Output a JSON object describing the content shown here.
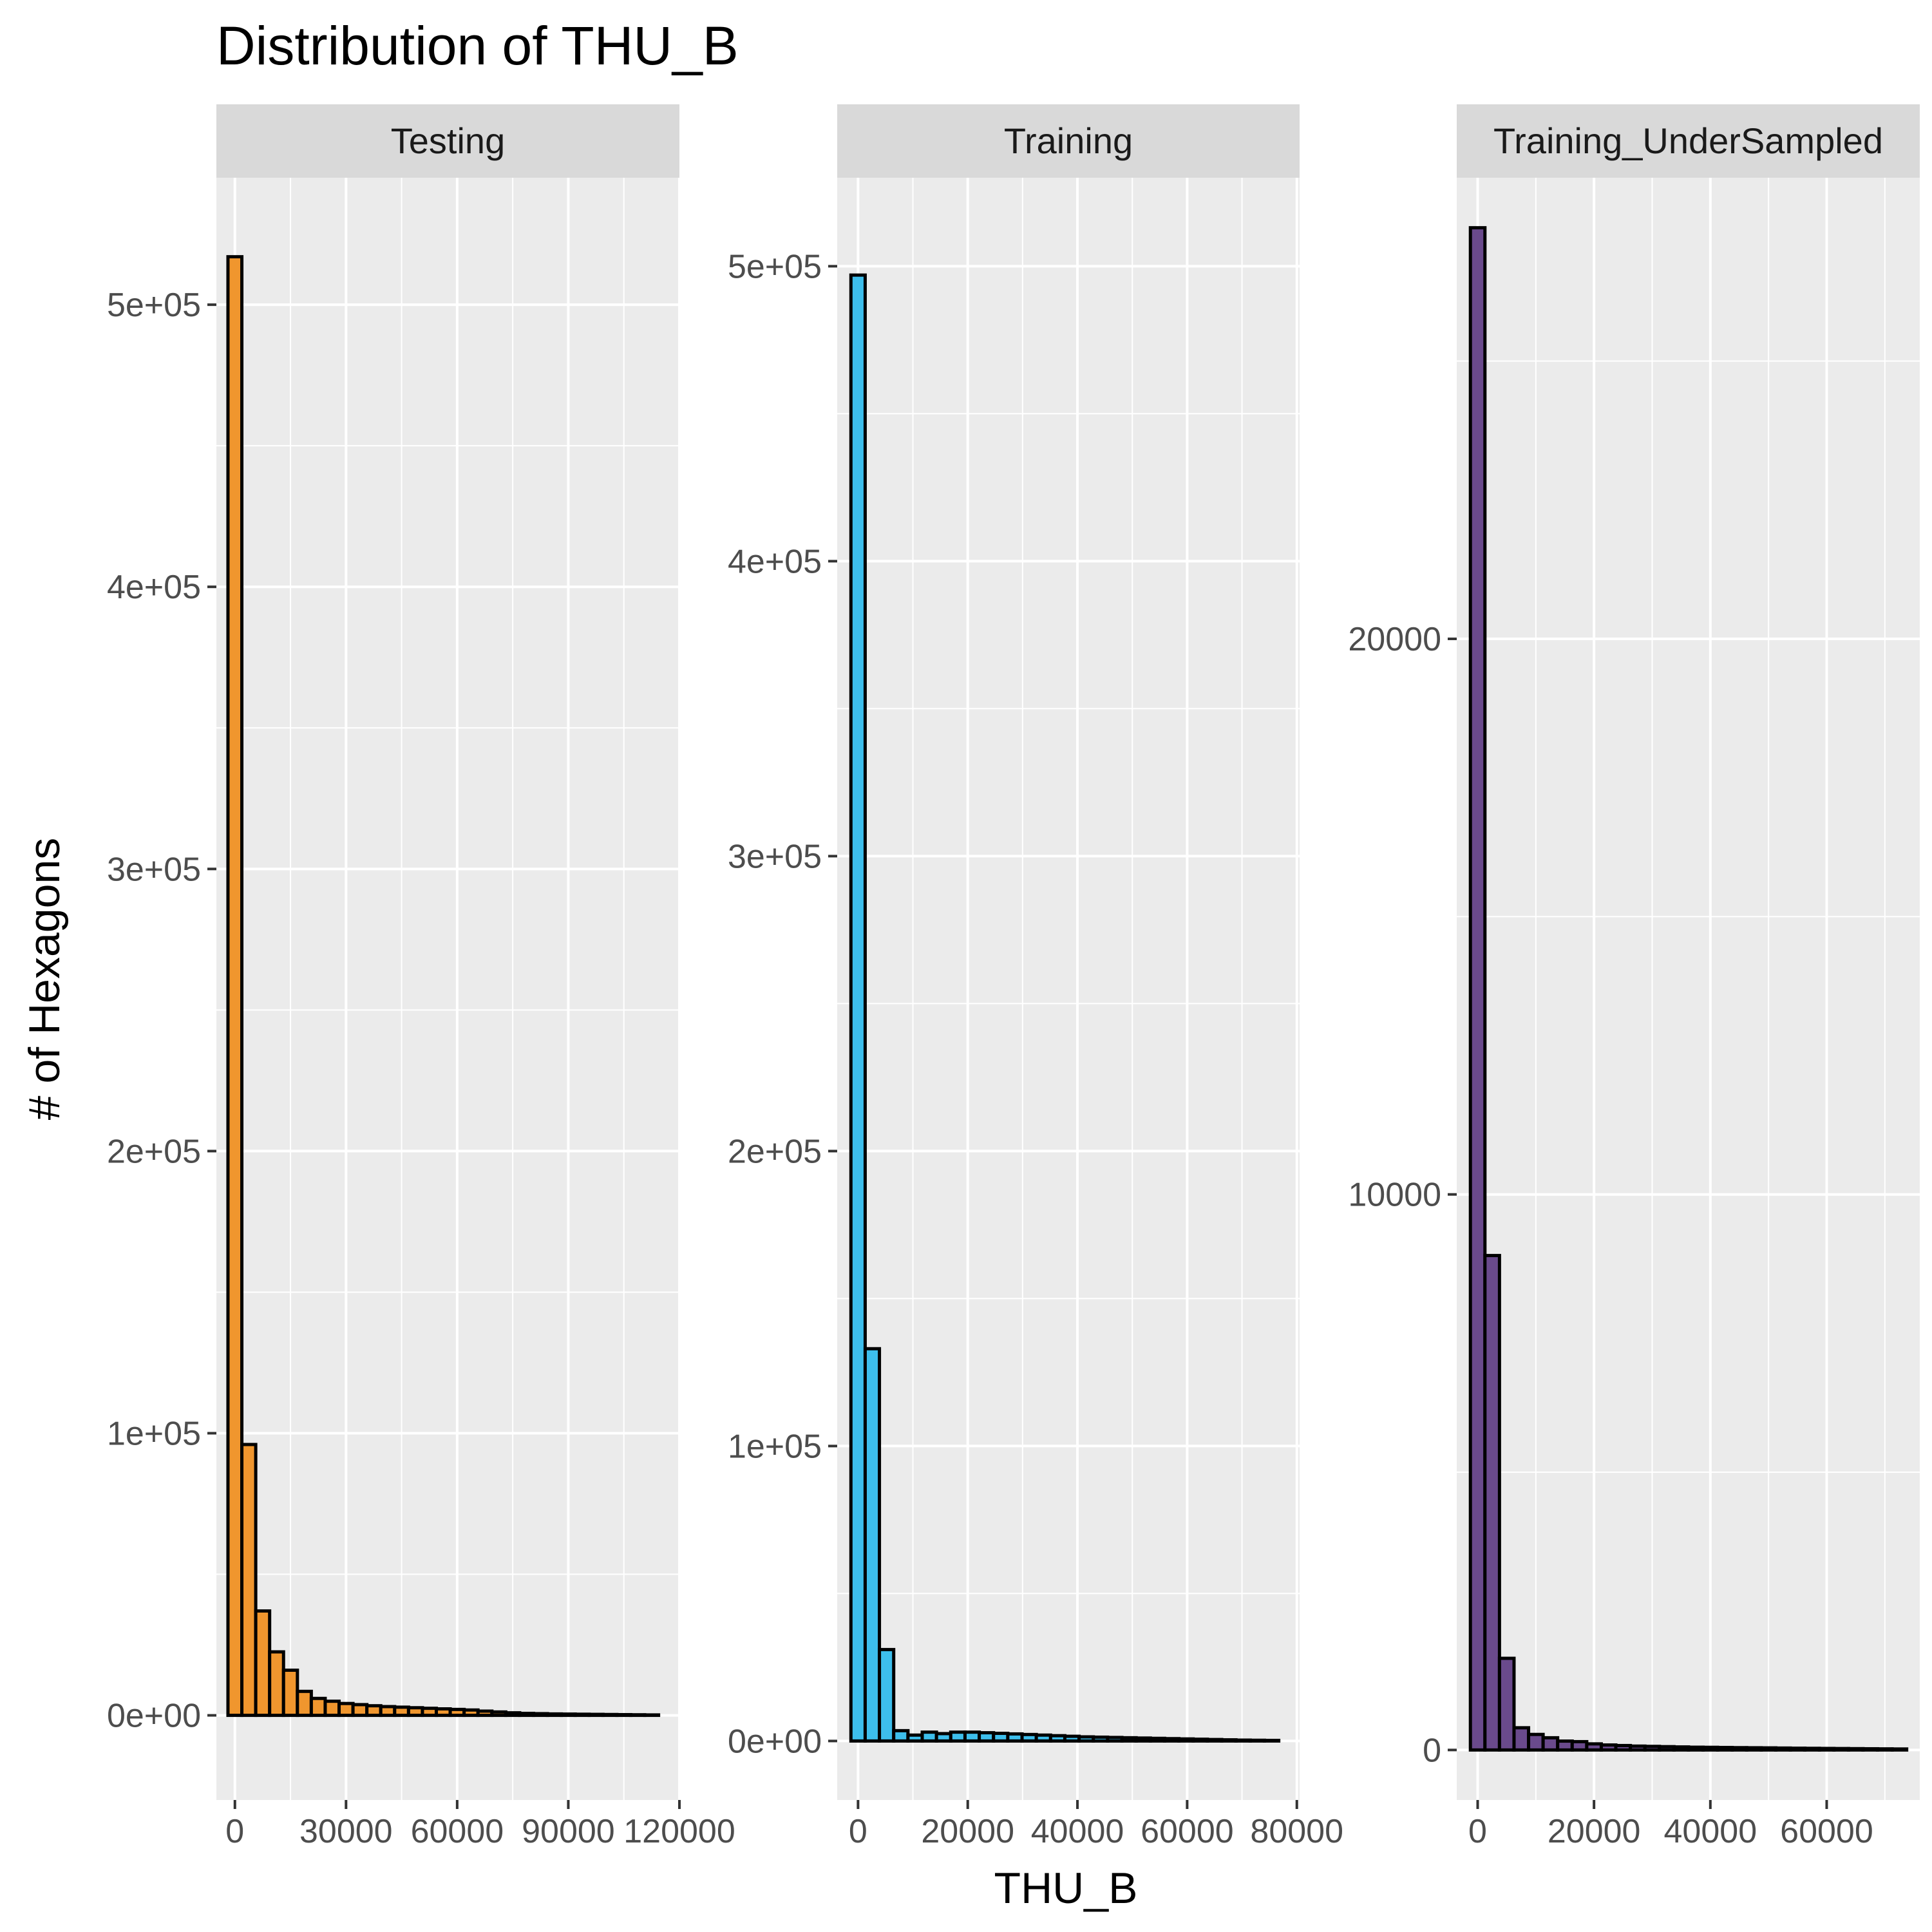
{
  "title": "Distribution of THU_B",
  "xlabel": "THU_B",
  "ylabel": "# of Hexagons",
  "chart_data": [
    {
      "type": "bar",
      "facet": "Testing",
      "color": "#F0962E",
      "x_range": [
        -5000,
        120000
      ],
      "x_ticks": [
        0,
        30000,
        60000,
        90000,
        120000
      ],
      "x_tick_labels": [
        "0",
        "30000",
        "60000",
        "90000",
        "120000"
      ],
      "y_range": [
        -30000,
        545000
      ],
      "y_ticks": [
        0,
        100000,
        200000,
        300000,
        400000,
        500000
      ],
      "y_tick_labels": [
        "0e+00",
        "1e+05",
        "2e+05",
        "3e+05",
        "4e+05",
        "5e+05"
      ],
      "bin_width": 3750,
      "bin_starts": [
        -1875,
        1875,
        5625,
        9375,
        13125,
        16875,
        20625,
        24375,
        28125,
        31875,
        35625,
        39375,
        43125,
        46875,
        50625,
        54375,
        58125,
        61875,
        65625,
        69375,
        73125,
        76875,
        80625,
        84375,
        88125,
        91875,
        95625,
        99375,
        103125,
        106875,
        110625
      ],
      "values": [
        517000,
        96000,
        37000,
        22500,
        16000,
        8500,
        6000,
        5000,
        4200,
        3800,
        3400,
        3100,
        2900,
        2700,
        2500,
        2300,
        2100,
        1900,
        1500,
        1200,
        900,
        700,
        600,
        500,
        450,
        400,
        350,
        300,
        250,
        200,
        150
      ]
    },
    {
      "type": "bar",
      "facet": "Training",
      "color": "#3DBEEC",
      "x_range": [
        -3800,
        80500
      ],
      "x_ticks": [
        0,
        20000,
        40000,
        60000,
        80000
      ],
      "x_tick_labels": [
        "0",
        "20000",
        "40000",
        "60000",
        "80000"
      ],
      "y_range": [
        -20000,
        530000
      ],
      "y_ticks": [
        0,
        100000,
        200000,
        300000,
        400000,
        500000
      ],
      "y_tick_labels": [
        "0e+00",
        "1e+05",
        "2e+05",
        "3e+05",
        "4e+05",
        "5e+05"
      ],
      "bin_width": 2600,
      "bin_starts": [
        -1300,
        1300,
        3900,
        6500,
        9100,
        11700,
        14300,
        16900,
        19500,
        22100,
        24700,
        27300,
        29900,
        32500,
        35100,
        37700,
        40300,
        42900,
        45500,
        48100,
        50700,
        53300,
        55900,
        58500,
        61100,
        63700,
        66300,
        68900,
        71500,
        74100
      ],
      "values": [
        497000,
        133000,
        31000,
        3500,
        2000,
        3000,
        2500,
        3000,
        3000,
        2800,
        2600,
        2400,
        2200,
        2000,
        1800,
        1600,
        1400,
        1300,
        1200,
        1100,
        1000,
        900,
        800,
        700,
        600,
        500,
        400,
        300,
        250,
        200
      ]
    },
    {
      "type": "bar",
      "facet": "Training_UnderSampled",
      "color": "#6A4A8C",
      "x_range": [
        -3600,
        76000
      ],
      "x_ticks": [
        0,
        20000,
        40000,
        60000
      ],
      "x_tick_labels": [
        "0",
        "20000",
        "40000",
        "60000"
      ],
      "y_range": [
        -900,
        28300
      ],
      "y_ticks": [
        0,
        10000,
        20000
      ],
      "y_tick_labels": [
        "0",
        "10000",
        "20000"
      ],
      "bin_width": 2500,
      "bin_starts": [
        -1250,
        1250,
        3750,
        6250,
        8750,
        11250,
        13750,
        16250,
        18750,
        21250,
        23750,
        26250,
        28750,
        31250,
        33750,
        36250,
        38750,
        41250,
        43750,
        46250,
        48750,
        51250,
        53750,
        56250,
        58750,
        61250,
        63750,
        66250,
        68750,
        71250
      ],
      "values": [
        27400,
        8900,
        1650,
        400,
        280,
        220,
        160,
        150,
        110,
        90,
        80,
        70,
        65,
        60,
        55,
        50,
        48,
        45,
        42,
        40,
        38,
        35,
        32,
        30,
        28,
        26,
        24,
        22,
        20,
        18
      ]
    }
  ]
}
